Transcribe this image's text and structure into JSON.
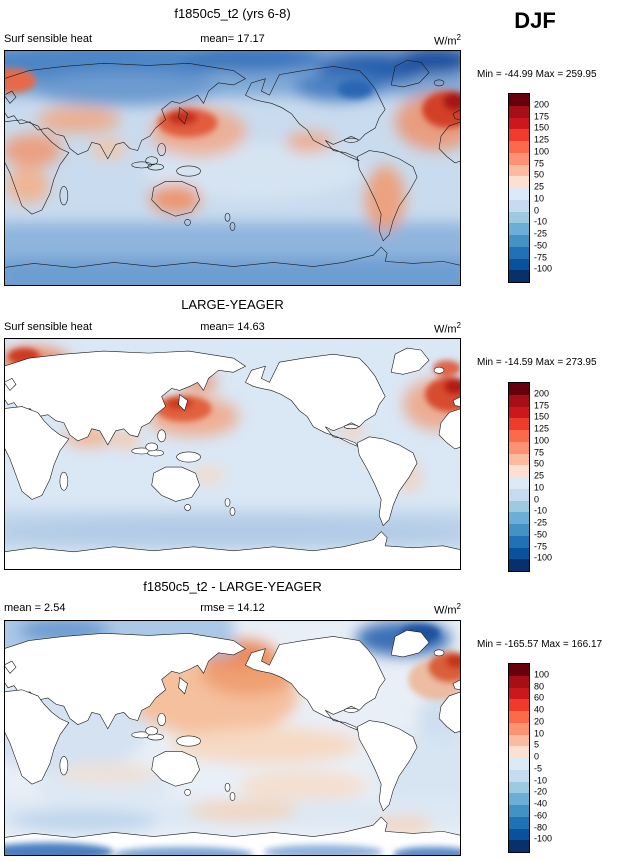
{
  "season_label": "DJF",
  "palette": [
    "#67000d",
    "#a50f15",
    "#cb181d",
    "#ef3b2c",
    "#fb6a4a",
    "#fc9272",
    "#fcbba1",
    "#fee0d2",
    "#dce9f7",
    "#c6dbef",
    "#9ecae1",
    "#6baed6",
    "#4292c6",
    "#2171b5",
    "#08519c",
    "#08306b"
  ],
  "panels": [
    {
      "title": "f1850c5_t2 (yrs 6-8)",
      "header_left": "Surf sensible heat",
      "header_center": "mean=  17.17",
      "units_base": "W/m",
      "units_sup": "2",
      "minmax": "Min = -44.99 Max = 259.95",
      "ticks": [
        "200",
        "175",
        "150",
        "125",
        "100",
        "75",
        "50",
        "25",
        "10",
        "0",
        "-10",
        "-25",
        "-50",
        "-75",
        "-100"
      ]
    },
    {
      "title": "LARGE-YEAGER",
      "header_left": "Surf sensible heat",
      "header_center": "mean=  14.63",
      "units_base": "W/m",
      "units_sup": "2",
      "minmax": "Min = -14.59 Max = 273.95",
      "ticks": [
        "200",
        "175",
        "150",
        "125",
        "100",
        "75",
        "50",
        "25",
        "10",
        "0",
        "-10",
        "-25",
        "-50",
        "-75",
        "-100"
      ]
    },
    {
      "title": "f1850c5_t2 - LARGE-YEAGER",
      "header_left": "mean =  2.54",
      "header_center": "rmse =  14.12",
      "units_base": "W/m",
      "units_sup": "2",
      "minmax": "Min = -165.57 Max = 166.17",
      "ticks": [
        "100",
        "80",
        "60",
        "40",
        "20",
        "10",
        "5",
        "0",
        "-5",
        "-10",
        "-20",
        "-40",
        "-60",
        "-80",
        "-100"
      ]
    }
  ],
  "chart_data": {
    "type": "heatmap",
    "subtype": "global_map_comparison_3panel",
    "season": "DJF",
    "variable": "Surf sensible heat",
    "units": "W/m2",
    "legend_position": "right",
    "palette_top_to_bottom": [
      "#67000d",
      "#a50f15",
      "#cb181d",
      "#ef3b2c",
      "#fb6a4a",
      "#fc9272",
      "#fcbba1",
      "#fee0d2",
      "#dce9f7",
      "#c6dbef",
      "#9ecae1",
      "#6baed6",
      "#4292c6",
      "#2171b5",
      "#08519c",
      "#08306b"
    ],
    "panels": [
      {
        "title": "f1850c5_t2 (yrs 6-8)",
        "mean": 17.17,
        "min": -44.99,
        "max": 259.95,
        "contour_levels": [
          -100,
          -75,
          -50,
          -25,
          -10,
          0,
          10,
          25,
          50,
          75,
          100,
          125,
          150,
          175,
          200
        ]
      },
      {
        "title": "LARGE-YEAGER",
        "mean": 14.63,
        "min": -14.59,
        "max": 273.95,
        "contour_levels": [
          -100,
          -75,
          -50,
          -25,
          -10,
          0,
          10,
          25,
          50,
          75,
          100,
          125,
          150,
          175,
          200
        ]
      },
      {
        "title": "f1850c5_t2 - LARGE-YEAGER",
        "mean": 2.54,
        "rmse": 14.12,
        "min": -165.57,
        "max": 166.17,
        "contour_levels": [
          -100,
          -80,
          -60,
          -40,
          -20,
          -10,
          -5,
          0,
          5,
          10,
          20,
          40,
          60,
          80,
          100
        ]
      }
    ]
  }
}
